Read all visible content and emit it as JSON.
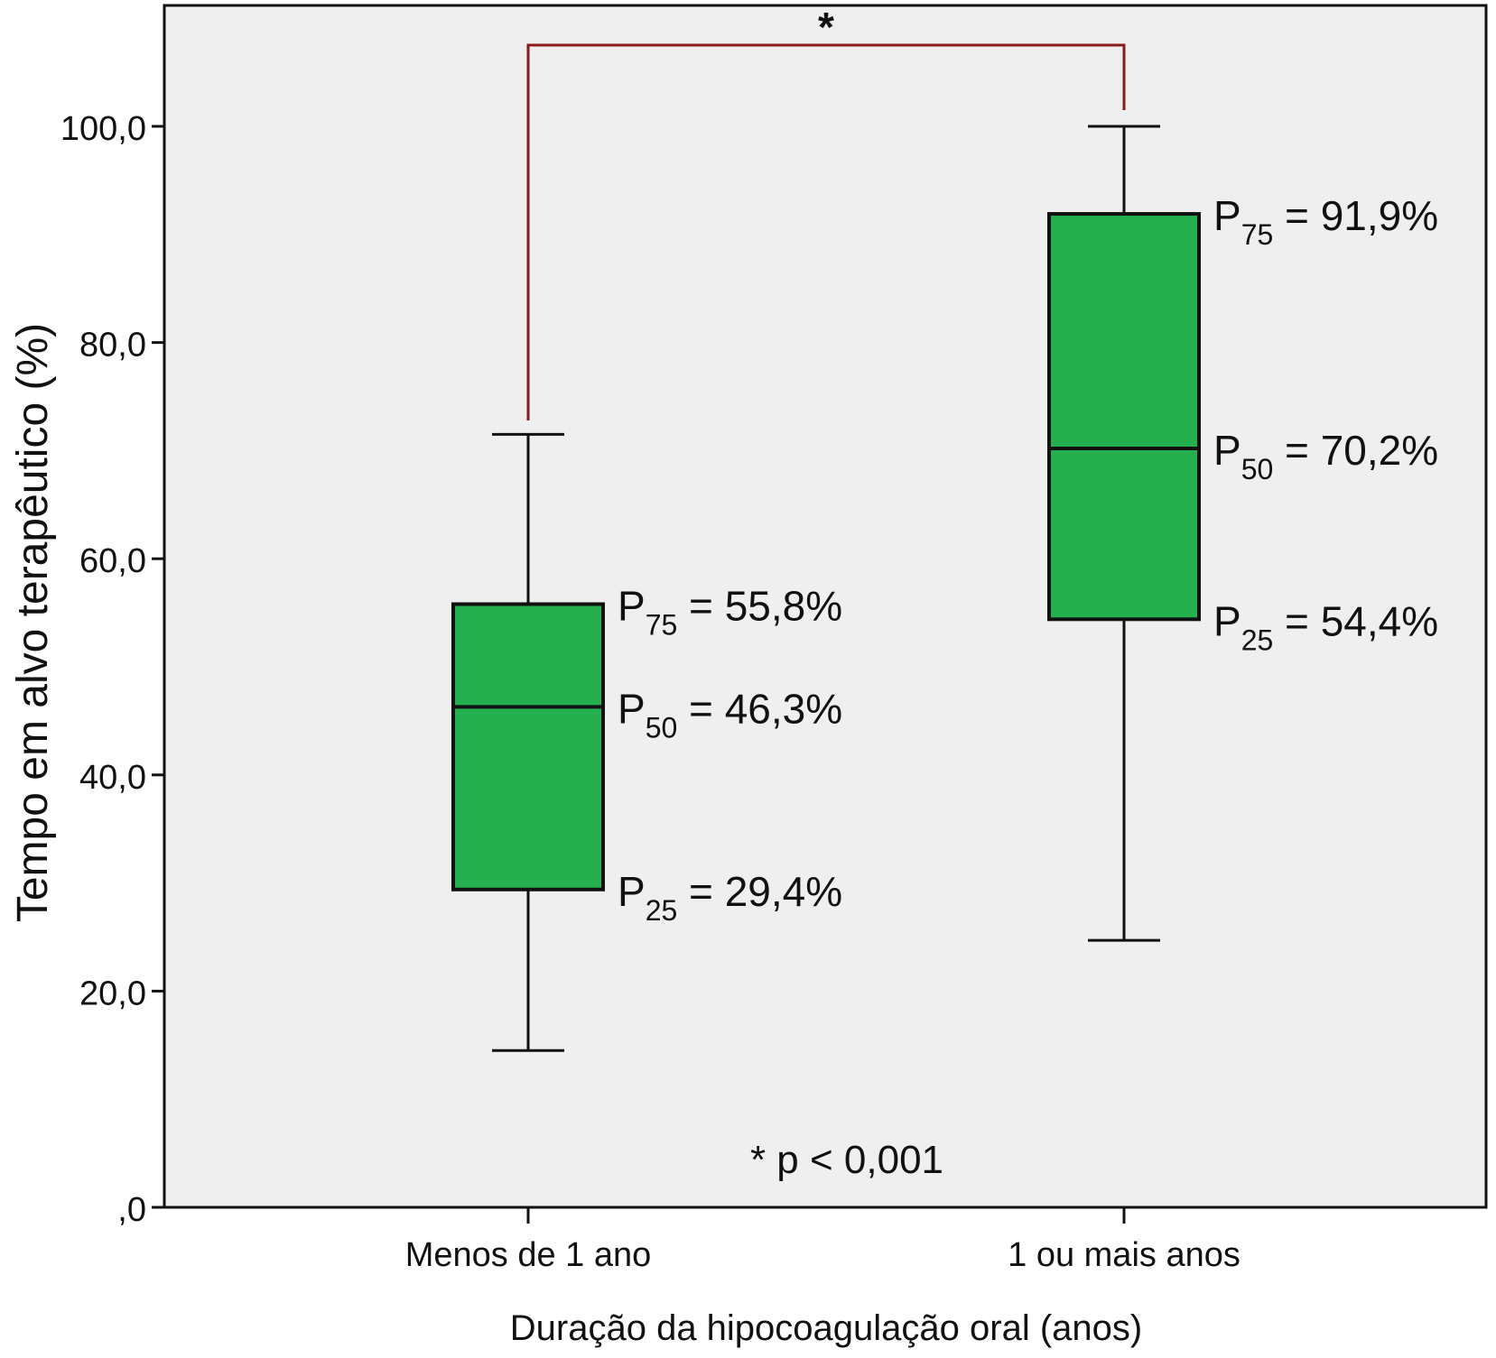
{
  "chart_data": {
    "type": "boxplot",
    "xlabel": "Duração da hipocoagulação oral (anos)",
    "ylabel": "Tempo em alvo terapêutico (%)",
    "ylim": [
      0,
      110
    ],
    "yticks": [
      0,
      20,
      40,
      60,
      80,
      100
    ],
    "ytick_labels": [
      ",0",
      "20,0",
      "40,0",
      "60,0",
      "80,0",
      "100,0"
    ],
    "categories": [
      "Menos de 1 ano",
      "1 ou mais anos"
    ],
    "boxes": [
      {
        "category": "Menos de 1 ano",
        "whisker_low": 14.5,
        "q1": 29.4,
        "median": 46.3,
        "q3": 55.8,
        "whisker_high": 71.5,
        "annotations": [
          {
            "label": "P",
            "sub": "75",
            "text": " = 55,8%",
            "value": 55.8
          },
          {
            "label": "P",
            "sub": "50",
            "text": " = 46,3%",
            "value": 46.3
          },
          {
            "label": "P",
            "sub": "25",
            "text": " = 29,4%",
            "value": 29.4
          }
        ]
      },
      {
        "category": "1 ou mais anos",
        "whisker_low": 24.7,
        "q1": 54.4,
        "median": 70.2,
        "q3": 91.9,
        "whisker_high": 100.0,
        "annotations": [
          {
            "label": "P",
            "sub": "75",
            "text": " = 91,9%",
            "value": 91.9
          },
          {
            "label": "P",
            "sub": "50",
            "text": " = 70,2%",
            "value": 70.2
          },
          {
            "label": "P",
            "sub": "25",
            "text": " = 54,4%",
            "value": 54.4
          }
        ]
      }
    ],
    "significance": {
      "marker": "*",
      "note": "* p < 0,001"
    },
    "colors": {
      "box_fill": "#24b04e",
      "plot_bg": "#efefef",
      "bracket": "#8b1a1a"
    }
  }
}
